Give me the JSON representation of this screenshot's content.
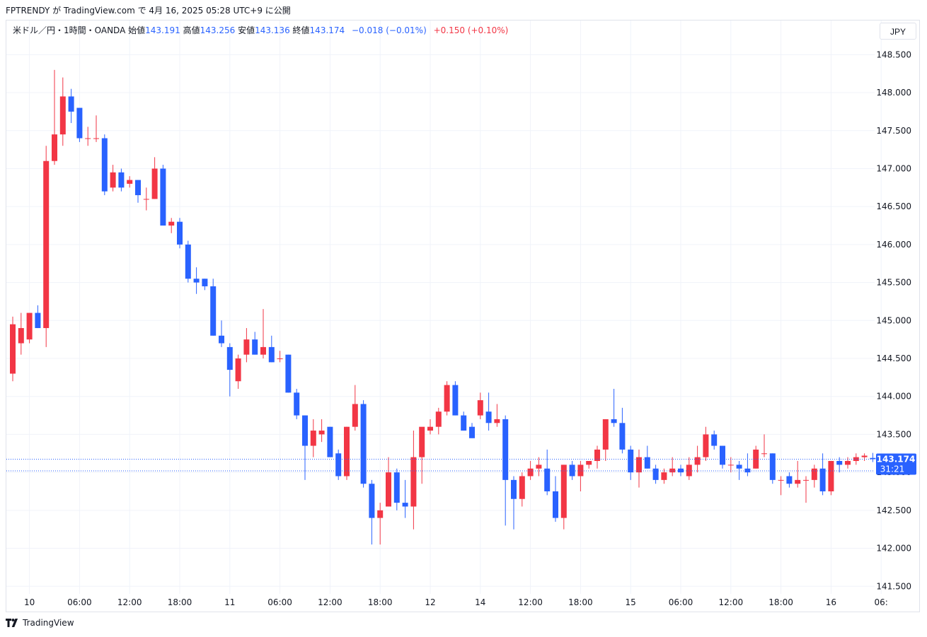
{
  "caption": "FPTRENDY が TradingView.com で 4月 16, 2025 05:28 UTC+9 に公開",
  "legend": {
    "symbol": "米ドル／円・1時間・OANDA",
    "open_label": "始値",
    "open": "143.191",
    "high_label": "高値",
    "high": "143.256",
    "low_label": "安値",
    "low": "143.136",
    "close_label": "終値",
    "close": "143.174",
    "change": "−0.018 (−0.01%)",
    "change2": "+0.150 (+0.10%)"
  },
  "currency_button": "JPY",
  "price_badge": {
    "price": "143.174",
    "countdown": "31:21"
  },
  "footer": {
    "brand": "TradingView"
  },
  "colors": {
    "up": "#f23645",
    "down": "#2962ff",
    "grid": "#f0f3fa",
    "axis_text": "#131722"
  },
  "chart_data": {
    "type": "candlestick",
    "y_ticks": [
      "141.500",
      "142.000",
      "142.500",
      "143.000",
      "143.500",
      "144.000",
      "144.500",
      "145.000",
      "145.500",
      "146.000",
      "146.500",
      "147.000",
      "147.500",
      "148.000",
      "148.500"
    ],
    "ylim": [
      141.4,
      148.95
    ],
    "x_ticks": [
      {
        "label": "10",
        "i": 2
      },
      {
        "label": "06:00",
        "i": 8
      },
      {
        "label": "12:00",
        "i": 14
      },
      {
        "label": "18:00",
        "i": 20
      },
      {
        "label": "11",
        "i": 26
      },
      {
        "label": "06:00",
        "i": 32
      },
      {
        "label": "12:00",
        "i": 38
      },
      {
        "label": "18:00",
        "i": 44
      },
      {
        "label": "12",
        "i": 50
      },
      {
        "label": "14",
        "i": 56
      },
      {
        "label": "12:00",
        "i": 62
      },
      {
        "label": "18:00",
        "i": 68
      },
      {
        "label": "15",
        "i": 74
      },
      {
        "label": "06:00",
        "i": 80
      },
      {
        "label": "12:00",
        "i": 86
      },
      {
        "label": "18:00",
        "i": 92
      },
      {
        "label": "16",
        "i": 98
      },
      {
        "label": "06:",
        "i": 104
      }
    ],
    "last_price": 143.174,
    "prev_close_line": 143.02,
    "candles": [
      {
        "o": 144.3,
        "h": 145.05,
        "l": 144.2,
        "c": 144.95
      },
      {
        "o": 144.7,
        "h": 145.1,
        "l": 144.55,
        "c": 144.9
      },
      {
        "o": 144.75,
        "h": 145.1,
        "l": 144.7,
        "c": 145.1
      },
      {
        "o": 145.1,
        "h": 145.2,
        "l": 144.9,
        "c": 144.9
      },
      {
        "o": 144.9,
        "h": 147.3,
        "l": 144.65,
        "c": 147.1
      },
      {
        "o": 147.1,
        "h": 148.3,
        "l": 147.05,
        "c": 147.45
      },
      {
        "o": 147.45,
        "h": 148.2,
        "l": 147.3,
        "c": 147.95
      },
      {
        "o": 147.95,
        "h": 148.05,
        "l": 147.6,
        "c": 147.75
      },
      {
        "o": 147.8,
        "h": 147.8,
        "l": 147.35,
        "c": 147.4
      },
      {
        "o": 147.4,
        "h": 147.55,
        "l": 147.3,
        "c": 147.4
      },
      {
        "o": 147.4,
        "h": 147.7,
        "l": 147.35,
        "c": 147.4
      },
      {
        "o": 147.4,
        "h": 147.45,
        "l": 146.65,
        "c": 146.7
      },
      {
        "o": 146.75,
        "h": 147.05,
        "l": 146.7,
        "c": 146.95
      },
      {
        "o": 146.95,
        "h": 147.0,
        "l": 146.7,
        "c": 146.75
      },
      {
        "o": 146.8,
        "h": 146.9,
        "l": 146.75,
        "c": 146.85
      },
      {
        "o": 146.85,
        "h": 146.85,
        "l": 146.55,
        "c": 146.65
      },
      {
        "o": 146.6,
        "h": 146.75,
        "l": 146.45,
        "c": 146.6
      },
      {
        "o": 146.6,
        "h": 147.15,
        "l": 146.6,
        "c": 147.0
      },
      {
        "o": 147.0,
        "h": 147.05,
        "l": 146.25,
        "c": 146.25
      },
      {
        "o": 146.25,
        "h": 146.35,
        "l": 146.15,
        "c": 146.3
      },
      {
        "o": 146.3,
        "h": 146.35,
        "l": 145.95,
        "c": 146.0
      },
      {
        "o": 146.0,
        "h": 146.05,
        "l": 145.5,
        "c": 145.55
      },
      {
        "o": 145.55,
        "h": 145.7,
        "l": 145.35,
        "c": 145.5
      },
      {
        "o": 145.55,
        "h": 145.55,
        "l": 145.4,
        "c": 145.45
      },
      {
        "o": 145.45,
        "h": 145.55,
        "l": 144.8,
        "c": 144.8
      },
      {
        "o": 144.8,
        "h": 145.0,
        "l": 144.65,
        "c": 144.7
      },
      {
        "o": 144.65,
        "h": 144.7,
        "l": 144.0,
        "c": 144.35
      },
      {
        "o": 144.2,
        "h": 144.55,
        "l": 144.1,
        "c": 144.5
      },
      {
        "o": 144.55,
        "h": 144.9,
        "l": 144.45,
        "c": 144.75
      },
      {
        "o": 144.75,
        "h": 144.85,
        "l": 144.55,
        "c": 144.55
      },
      {
        "o": 144.55,
        "h": 145.15,
        "l": 144.5,
        "c": 144.65
      },
      {
        "o": 144.65,
        "h": 144.8,
        "l": 144.45,
        "c": 144.45
      },
      {
        "o": 144.5,
        "h": 144.6,
        "l": 144.45,
        "c": 144.5
      },
      {
        "o": 144.55,
        "h": 144.55,
        "l": 144.05,
        "c": 144.05
      },
      {
        "o": 144.05,
        "h": 144.1,
        "l": 143.7,
        "c": 143.75
      },
      {
        "o": 143.75,
        "h": 143.75,
        "l": 142.9,
        "c": 143.35
      },
      {
        "o": 143.35,
        "h": 143.7,
        "l": 143.2,
        "c": 143.55
      },
      {
        "o": 143.5,
        "h": 143.7,
        "l": 143.4,
        "c": 143.55
      },
      {
        "o": 143.6,
        "h": 143.6,
        "l": 143.25,
        "c": 143.2
      },
      {
        "o": 143.25,
        "h": 143.3,
        "l": 142.9,
        "c": 142.95
      },
      {
        "o": 142.95,
        "h": 143.6,
        "l": 142.9,
        "c": 143.6
      },
      {
        "o": 143.6,
        "h": 144.15,
        "l": 143.55,
        "c": 143.9
      },
      {
        "o": 143.9,
        "h": 143.95,
        "l": 142.8,
        "c": 142.85
      },
      {
        "o": 142.85,
        "h": 142.9,
        "l": 142.05,
        "c": 142.4
      },
      {
        "o": 142.4,
        "h": 142.6,
        "l": 142.05,
        "c": 142.5
      },
      {
        "o": 142.55,
        "h": 143.2,
        "l": 142.55,
        "c": 143.0
      },
      {
        "o": 143.0,
        "h": 143.05,
        "l": 142.5,
        "c": 142.6
      },
      {
        "o": 142.6,
        "h": 142.9,
        "l": 142.4,
        "c": 142.55
      },
      {
        "o": 142.55,
        "h": 143.55,
        "l": 142.25,
        "c": 143.2
      },
      {
        "o": 143.2,
        "h": 143.55,
        "l": 142.85,
        "c": 143.6
      },
      {
        "o": 143.55,
        "h": 143.7,
        "l": 143.5,
        "c": 143.6
      },
      {
        "o": 143.6,
        "h": 143.85,
        "l": 143.5,
        "c": 143.8
      },
      {
        "o": 143.8,
        "h": 144.2,
        "l": 143.75,
        "c": 144.15
      },
      {
        "o": 144.15,
        "h": 144.2,
        "l": 143.75,
        "c": 143.75
      },
      {
        "o": 143.75,
        "h": 143.8,
        "l": 143.55,
        "c": 143.55
      },
      {
        "o": 143.6,
        "h": 143.65,
        "l": 143.45,
        "c": 143.45
      },
      {
        "o": 143.75,
        "h": 144.05,
        "l": 143.7,
        "c": 143.95
      },
      {
        "o": 143.8,
        "h": 144.05,
        "l": 143.55,
        "c": 143.65
      },
      {
        "o": 143.65,
        "h": 143.9,
        "l": 143.6,
        "c": 143.7
      },
      {
        "o": 143.7,
        "h": 143.75,
        "l": 142.3,
        "c": 142.9
      },
      {
        "o": 142.9,
        "h": 142.95,
        "l": 142.25,
        "c": 142.65
      },
      {
        "o": 142.65,
        "h": 143.0,
        "l": 142.55,
        "c": 142.95
      },
      {
        "o": 142.95,
        "h": 143.15,
        "l": 142.9,
        "c": 143.05
      },
      {
        "o": 143.05,
        "h": 143.2,
        "l": 142.95,
        "c": 143.1
      },
      {
        "o": 143.05,
        "h": 143.3,
        "l": 142.7,
        "c": 142.75
      },
      {
        "o": 142.75,
        "h": 142.95,
        "l": 142.35,
        "c": 142.4
      },
      {
        "o": 142.4,
        "h": 143.1,
        "l": 142.25,
        "c": 143.1
      },
      {
        "o": 143.1,
        "h": 143.15,
        "l": 142.9,
        "c": 142.95
      },
      {
        "o": 142.95,
        "h": 143.15,
        "l": 142.75,
        "c": 143.1
      },
      {
        "o": 143.1,
        "h": 143.15,
        "l": 143.05,
        "c": 143.15
      },
      {
        "o": 143.15,
        "h": 143.35,
        "l": 143.05,
        "c": 143.3
      },
      {
        "o": 143.3,
        "h": 143.7,
        "l": 143.15,
        "c": 143.7
      },
      {
        "o": 143.7,
        "h": 144.1,
        "l": 143.6,
        "c": 143.65
      },
      {
        "o": 143.65,
        "h": 143.85,
        "l": 143.25,
        "c": 143.3
      },
      {
        "o": 143.3,
        "h": 143.35,
        "l": 142.9,
        "c": 143.0
      },
      {
        "o": 143.0,
        "h": 143.3,
        "l": 142.8,
        "c": 143.2
      },
      {
        "o": 143.2,
        "h": 143.35,
        "l": 143.05,
        "c": 143.05
      },
      {
        "o": 143.05,
        "h": 143.1,
        "l": 142.85,
        "c": 142.9
      },
      {
        "o": 142.9,
        "h": 143.05,
        "l": 142.85,
        "c": 143.0
      },
      {
        "o": 143.0,
        "h": 143.2,
        "l": 142.95,
        "c": 143.05
      },
      {
        "o": 143.05,
        "h": 143.1,
        "l": 142.95,
        "c": 143.0
      },
      {
        "o": 142.95,
        "h": 143.2,
        "l": 142.9,
        "c": 143.1
      },
      {
        "o": 143.1,
        "h": 143.35,
        "l": 143.0,
        "c": 143.2
      },
      {
        "o": 143.2,
        "h": 143.6,
        "l": 143.15,
        "c": 143.5
      },
      {
        "o": 143.5,
        "h": 143.55,
        "l": 143.3,
        "c": 143.35
      },
      {
        "o": 143.35,
        "h": 143.35,
        "l": 143.05,
        "c": 143.1
      },
      {
        "o": 143.1,
        "h": 143.2,
        "l": 143.0,
        "c": 143.1
      },
      {
        "o": 143.1,
        "h": 143.15,
        "l": 142.9,
        "c": 143.05
      },
      {
        "o": 143.05,
        "h": 143.25,
        "l": 142.95,
        "c": 143.0
      },
      {
        "o": 143.05,
        "h": 143.35,
        "l": 143.05,
        "c": 143.3
      },
      {
        "o": 143.25,
        "h": 143.5,
        "l": 143.2,
        "c": 143.25
      },
      {
        "o": 143.25,
        "h": 143.25,
        "l": 142.85,
        "c": 142.9
      },
      {
        "o": 142.9,
        "h": 142.95,
        "l": 142.7,
        "c": 142.9
      },
      {
        "o": 142.95,
        "h": 143.0,
        "l": 142.8,
        "c": 142.85
      },
      {
        "o": 142.85,
        "h": 143.15,
        "l": 142.8,
        "c": 142.9
      },
      {
        "o": 142.9,
        "h": 142.95,
        "l": 142.6,
        "c": 142.9
      },
      {
        "o": 142.9,
        "h": 143.1,
        "l": 142.8,
        "c": 143.05
      },
      {
        "o": 143.05,
        "h": 143.25,
        "l": 142.7,
        "c": 142.75
      },
      {
        "o": 142.75,
        "h": 143.1,
        "l": 142.7,
        "c": 143.15
      },
      {
        "o": 143.15,
        "h": 143.2,
        "l": 143.0,
        "c": 143.1
      },
      {
        "o": 143.1,
        "h": 143.2,
        "l": 143.05,
        "c": 143.15
      },
      {
        "o": 143.15,
        "h": 143.25,
        "l": 143.1,
        "c": 143.2
      },
      {
        "o": 143.2,
        "h": 143.25,
        "l": 143.15,
        "c": 143.22
      },
      {
        "o": 143.19,
        "h": 143.256,
        "l": 143.136,
        "c": 143.174
      }
    ]
  }
}
